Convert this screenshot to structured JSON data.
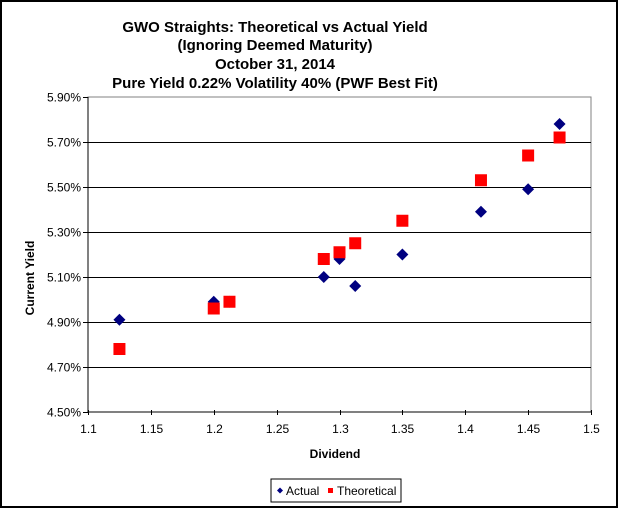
{
  "chart_data": {
    "type": "scatter",
    "title": [
      "GWO Straights: Theoretical vs Actual Yield",
      "(Ignoring Deemed Maturity)",
      "October 31, 2014",
      "Pure Yield 0.22% Volatility 40% (PWF Best Fit)"
    ],
    "xlabel": "Dividend",
    "ylabel": "Current Yield",
    "xlim": [
      1.1,
      1.5
    ],
    "ylim": [
      4.5,
      5.9
    ],
    "x_ticks": [
      "1.1",
      "1.15",
      "1.2",
      "1.25",
      "1.3",
      "1.35",
      "1.4",
      "1.45",
      "1.5"
    ],
    "x_tick_values": [
      1.1,
      1.15,
      1.2,
      1.25,
      1.3,
      1.35,
      1.4,
      1.45,
      1.5
    ],
    "y_ticks": [
      "4.50%",
      "4.70%",
      "4.90%",
      "5.10%",
      "5.30%",
      "5.50%",
      "5.70%",
      "5.90%"
    ],
    "y_tick_values": [
      4.5,
      4.7,
      4.9,
      5.1,
      5.3,
      5.5,
      5.7,
      5.9
    ],
    "grid": "horizontal",
    "legend_position": "bottom",
    "series": [
      {
        "name": "Actual",
        "marker": "diamond",
        "color": "#000080",
        "points": [
          {
            "x": 1.125,
            "y": 4.91
          },
          {
            "x": 1.2,
            "y": 4.99
          },
          {
            "x": 1.2125,
            "y": 4.99
          },
          {
            "x": 1.2875,
            "y": 5.1
          },
          {
            "x": 1.3,
            "y": 5.18
          },
          {
            "x": 1.3125,
            "y": 5.06
          },
          {
            "x": 1.35,
            "y": 5.2
          },
          {
            "x": 1.4125,
            "y": 5.39
          },
          {
            "x": 1.45,
            "y": 5.49
          },
          {
            "x": 1.475,
            "y": 5.78
          }
        ]
      },
      {
        "name": "Theoretical",
        "marker": "square",
        "color": "#ff0000",
        "points": [
          {
            "x": 1.125,
            "y": 4.78
          },
          {
            "x": 1.2,
            "y": 4.96
          },
          {
            "x": 1.2125,
            "y": 4.99
          },
          {
            "x": 1.2875,
            "y": 5.18
          },
          {
            "x": 1.3,
            "y": 5.21
          },
          {
            "x": 1.3125,
            "y": 5.25
          },
          {
            "x": 1.35,
            "y": 5.35
          },
          {
            "x": 1.4125,
            "y": 5.53
          },
          {
            "x": 1.45,
            "y": 5.64
          },
          {
            "x": 1.475,
            "y": 5.72
          }
        ]
      }
    ]
  }
}
